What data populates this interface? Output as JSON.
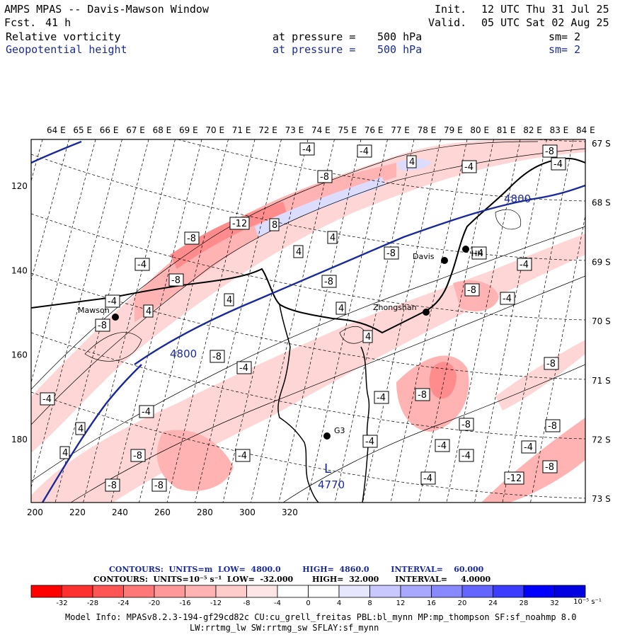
{
  "header": {
    "title": "AMPS MPAS -- Davis-Mawson Window",
    "fcst_label": "Fcst.",
    "fcst_value": "41 h",
    "init_label": "Init.",
    "init_value": "12 UTC Thu 31 Jul 25",
    "valid_label": "Valid.",
    "valid_value": "05 UTC Sat 02 Aug 25",
    "field1_name": "Relative vorticity",
    "field1_pressure_label": "at pressure =",
    "field1_pressure_value": "500 hPa",
    "field1_sm": "sm= 2",
    "field2_name": "Geopotential height",
    "field2_pressure_label": "at pressure =",
    "field2_pressure_value": "500 hPa",
    "field2_sm": "sm= 2"
  },
  "map": {
    "top_lon_labels": [
      "64 E",
      "65 E",
      "66 E",
      "67 E",
      "68 E",
      "69 E",
      "70 E",
      "71 E",
      "72 E",
      "73 E",
      "74 E",
      "75 E",
      "76 E",
      "77 E",
      "78 E",
      "79 E",
      "80 E",
      "81 E",
      "82 E",
      "83 E",
      "84 E"
    ],
    "right_lat_labels": [
      "67 S",
      "68 S",
      "69 S",
      "70 S",
      "71 S",
      "72 S",
      "73 S"
    ],
    "left_y_labels": [
      "120",
      "140",
      "160",
      "180"
    ],
    "bottom_x_labels": [
      "200",
      "220",
      "240",
      "260",
      "280",
      "300",
      "320"
    ],
    "stations": [
      {
        "name": "Mawson"
      },
      {
        "name": "Davis"
      },
      {
        "name": "Zhongshan"
      },
      {
        "name": "G3"
      },
      {
        "name": "HH"
      }
    ],
    "height_labels": [
      "4800",
      "4800"
    ],
    "low_marker": {
      "symbol": "L",
      "value": "4770"
    },
    "vort_labels": [
      "-4",
      "-8",
      "-12",
      "4",
      "8"
    ]
  },
  "colorbar": {
    "height_info": "CONTOURS:  UNITS=m  LOW=  4800.0        HIGH=  4860.0        INTERVAL=    60.000",
    "vort_info": "CONTOURS:  UNITS=10⁻⁵ s⁻¹  LOW=  -32.000       HIGH=  32.000      INTERVAL=     4.0000",
    "ticks": [
      "-32",
      "-28",
      "-24",
      "-20",
      "-16",
      "-12",
      "-8",
      "-4",
      "0",
      "4",
      "8",
      "12",
      "16",
      "20",
      "24",
      "28",
      "32"
    ],
    "units": "10⁻⁵ s⁻¹",
    "colors": [
      "#ff0000",
      "#ff3030",
      "#ff5555",
      "#ff7777",
      "#ff9999",
      "#ffb3b3",
      "#ffcccc",
      "#ffe6e6",
      "#ffffff",
      "#ffffff",
      "#e6e6ff",
      "#c8c8ff",
      "#a8a8ff",
      "#8888ff",
      "#6464ff",
      "#3c3cff",
      "#0000ff",
      "#0000e0"
    ]
  },
  "model_info": {
    "line1": "Model Info: MPASv8.2.3-194-gf29cd82c CU:cu_grell_freitas PBL:bl_mynn MP:mp_thompson SF:sf_noahmp 8.0",
    "line2": "LW:rrtmg_lw SW:rrtmg_sw SFLAY:sf_mynn"
  }
}
